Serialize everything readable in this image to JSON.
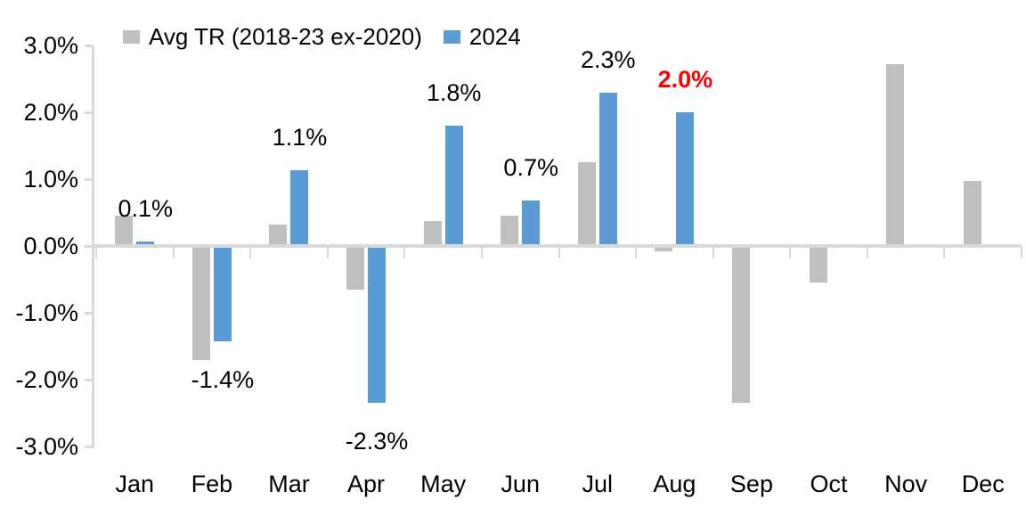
{
  "chart_data": {
    "type": "bar",
    "title": "",
    "categories": [
      "Jan",
      "Feb",
      "Mar",
      "Apr",
      "May",
      "Jun",
      "Jul",
      "Aug",
      "Sep",
      "Oct",
      "Nov",
      "Dec"
    ],
    "series": [
      {
        "name": "Avg TR (2018-23 ex-2020)",
        "color": "#bfbfbf",
        "values": [
          0.45,
          -1.7,
          0.32,
          -0.65,
          0.37,
          0.46,
          1.25,
          -0.08,
          -2.35,
          -0.55,
          2.72,
          0.97
        ]
      },
      {
        "name": "2024",
        "color": "#5b9bd5",
        "values": [
          0.07,
          -1.42,
          1.13,
          -2.35,
          1.8,
          0.68,
          2.3,
          2.0,
          null,
          null,
          null,
          null
        ],
        "data_labels": [
          {
            "text": "0.1%",
            "color": "#000000",
            "bold": false
          },
          {
            "text": "-1.4%",
            "color": "#000000",
            "bold": false
          },
          {
            "text": "1.1%",
            "color": "#000000",
            "bold": false
          },
          {
            "text": "-2.3%",
            "color": "#000000",
            "bold": false
          },
          {
            "text": "1.8%",
            "color": "#000000",
            "bold": false
          },
          {
            "text": "0.7%",
            "color": "#000000",
            "bold": false
          },
          {
            "text": "2.3%",
            "color": "#000000",
            "bold": false
          },
          {
            "text": "2.0%",
            "color": "#ff0000",
            "bold": true
          },
          null,
          null,
          null,
          null
        ]
      }
    ],
    "y_axis": {
      "unit": "%",
      "ylim": [
        -3,
        3
      ],
      "ticks": [
        {
          "label": "3.0%",
          "value": 3
        },
        {
          "label": "2.0%",
          "value": 2
        },
        {
          "label": "1.0%",
          "value": 1
        },
        {
          "label": "0.0%",
          "value": 0
        },
        {
          "label": "-1.0%",
          "value": -1
        },
        {
          "label": "-2.0%",
          "value": -2
        },
        {
          "label": "-3.0%",
          "value": -3
        }
      ]
    },
    "legend_position": "top-left",
    "grid": false,
    "style": {
      "axis_line_color": "#d9d9d9",
      "text_color": "#000000",
      "highlight_color": "#ff0000",
      "background": "#ffffff"
    }
  }
}
